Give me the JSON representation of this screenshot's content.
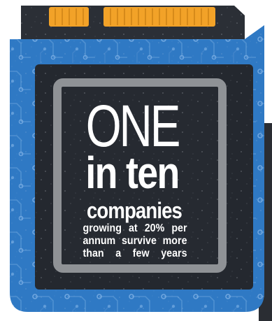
{
  "headline": {
    "big": "ONE",
    "bold": "in ten",
    "subject": "companies",
    "detail_lines": [
      [
        "growing",
        "at",
        "20%",
        "per"
      ],
      [
        "annum",
        "survive",
        "more"
      ],
      [
        "than",
        "a",
        "few",
        "years"
      ]
    ]
  },
  "colors": {
    "chip_blue": "#2f79c4",
    "chip_dark": "#24282f",
    "frame_grey": "#8f9296",
    "connector_orange": "#f2a228",
    "text": "#ffffff"
  },
  "icons": [
    "sd-card-chip-illustration",
    "circuit-traces",
    "gold-connector-pins"
  ]
}
